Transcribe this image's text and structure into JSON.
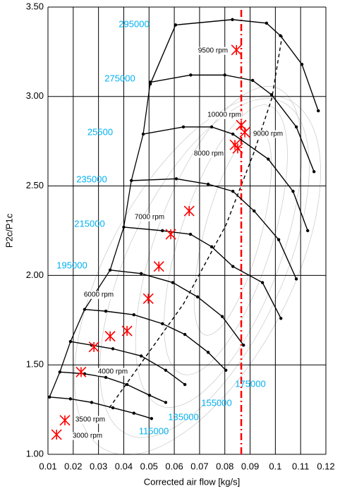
{
  "chart_data": {
    "type": "line",
    "xlabel": "Corrected air flow [kg/s]",
    "ylabel": "P2c/P1c",
    "xlim": [
      0.01,
      0.12
    ],
    "ylim": [
      1,
      3.5
    ],
    "xticks": [
      0.01,
      0.02,
      0.03,
      0.04,
      0.05,
      0.06,
      0.07,
      0.08,
      0.09,
      0.1,
      0.11,
      0.12
    ],
    "yticks": [
      {
        "value": 1,
        "label": "1.00"
      },
      {
        "value": 1.5,
        "label": "1.50"
      },
      {
        "value": 2,
        "label": "2.00"
      },
      {
        "value": 2.5,
        "label": "2.50"
      },
      {
        "value": 3,
        "label": "3.00"
      },
      {
        "value": 3.5,
        "label": "3.50"
      }
    ],
    "grid": true,
    "label_color": "#00b0f0",
    "series": [
      {
        "name": "295000",
        "color": "#000000",
        "x": [
          0.0505,
          0.0605,
          0.083,
          0.0965,
          0.102,
          0.1105,
          0.117
        ],
        "values": [
          3.07,
          3.4,
          3.43,
          3.41,
          3.34,
          3.18,
          2.92
        ]
      },
      {
        "name": "275000",
        "color": "#000000",
        "x": [
          0.0505,
          0.0665,
          0.08,
          0.091,
          0.0985,
          0.1083,
          0.1153
        ],
        "values": [
          3.08,
          3.12,
          3.12,
          3.09,
          3.01,
          2.83,
          2.58
        ]
      },
      {
        "name": "25500",
        "color": "#000000",
        "x": [
          0.0477,
          0.0636,
          0.0748,
          0.0832,
          0.0972,
          0.107,
          0.1128
        ],
        "values": [
          2.79,
          2.83,
          2.83,
          2.79,
          2.65,
          2.47,
          2.25
        ]
      },
      {
        "name": "235000",
        "color": "#000000",
        "x": [
          0.043,
          0.0608,
          0.0734,
          0.0832,
          0.0916,
          0.1013,
          0.1083
        ],
        "values": [
          2.53,
          2.54,
          2.51,
          2.47,
          2.36,
          2.2,
          1.98
        ]
      },
      {
        "name": "215000",
        "color": "#000000",
        "x": [
          0.04,
          0.0553,
          0.0664,
          0.0748,
          0.0832,
          0.0949,
          0.1022
        ],
        "values": [
          2.27,
          2.25,
          2.23,
          2.16,
          2.05,
          1.96,
          1.76
        ]
      },
      {
        "name": "195000",
        "color": "#000000",
        "x": [
          0.0346,
          0.0469,
          0.0594,
          0.0692,
          0.079,
          0.0874
        ],
        "values": [
          2.03,
          2.01,
          1.96,
          1.88,
          1.77,
          1.61
        ]
      },
      {
        "name": "175000",
        "color": "#000000",
        "x": [
          0.0245,
          0.0329,
          0.044,
          0.0553,
          0.0642,
          0.0734,
          0.0804
        ],
        "values": [
          1.81,
          1.8,
          1.78,
          1.73,
          1.67,
          1.57,
          1.47
        ]
      },
      {
        "name": "155000",
        "color": "#000000",
        "x": [
          0.0189,
          0.0273,
          0.0357,
          0.0469,
          0.0566,
          0.0642
        ],
        "values": [
          1.63,
          1.61,
          1.59,
          1.55,
          1.47,
          1.39
        ]
      },
      {
        "name": "135000",
        "color": "#000000",
        "x": [
          0.0147,
          0.0245,
          0.0329,
          0.0413,
          0.0502,
          0.0566
        ],
        "values": [
          1.46,
          1.45,
          1.43,
          1.39,
          1.33,
          1.29
        ]
      },
      {
        "name": "115000",
        "color": "#000000",
        "x": [
          0.0106,
          0.0189,
          0.0273,
          0.0357,
          0.044,
          0.051
        ],
        "values": [
          1.32,
          1.31,
          1.29,
          1.26,
          1.23,
          1.2
        ]
      }
    ],
    "operating_line": {
      "color": "#000000",
      "style": "dashed",
      "x": [
        0.0343,
        0.0469,
        0.0636,
        0.0804,
        0.0916,
        0.0986,
        0.1027
      ],
      "values": [
        1.26,
        1.51,
        1.84,
        2.28,
        2.69,
        2.99,
        3.34
      ]
    },
    "limit_line": {
      "color": "#ff0000",
      "style": "dashdot",
      "x": [
        0.0865,
        0.0865
      ],
      "values": [
        1,
        3.5
      ]
    },
    "measured_points": {
      "color": "#ff0000",
      "x": [
        0.0231,
        0.0282,
        0.0346,
        0.0413,
        0.0497,
        0.0539,
        0.0586,
        0.0659,
        0.0846,
        0.0865,
        0.0879,
        0.084,
        0.0851,
        0.0167,
        0.0134
      ],
      "values": [
        1.46,
        1.6,
        1.66,
        1.69,
        1.87,
        2.05,
        2.23,
        2.36,
        3.26,
        2.84,
        2.8,
        2.73,
        2.71,
        1.19,
        1.11
      ]
    },
    "annotations": [
      "9500 rpm",
      "10000 rpm",
      "9000 rpm",
      "8000 rpm",
      "7000 rpm",
      "6000 rpm",
      "4000 rpm",
      "3500 rpm",
      "3000 rpm"
    ]
  }
}
